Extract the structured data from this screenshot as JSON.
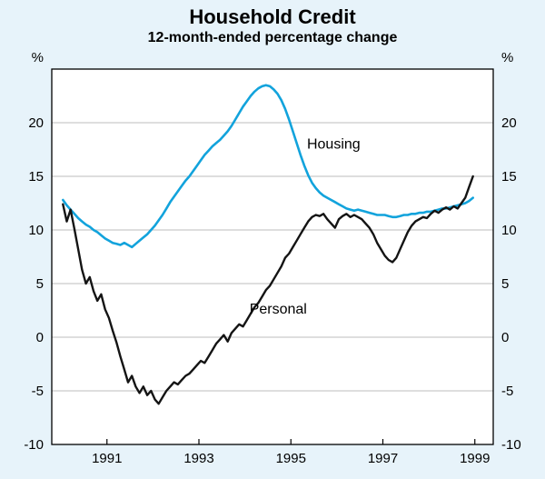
{
  "chart_data": {
    "type": "line",
    "title": "Household Credit",
    "subtitle": "12-month-ended percentage change",
    "y_unit": "%",
    "ylim": [
      -10,
      25
    ],
    "yticks_labeled": [
      -10,
      -5,
      0,
      5,
      10,
      15,
      20
    ],
    "xlim": [
      1989.8,
      1999.4
    ],
    "xticks": [
      1991,
      1993,
      1995,
      1997,
      1999
    ],
    "x_start": 1990.042,
    "x_step": 0.083333,
    "background": "#e7f3fa",
    "plot_background": "#ffffff",
    "grid_color": "#bdbdbd",
    "border_color": "#000000",
    "legend_position": "inline-annotations",
    "grid": true,
    "series": [
      {
        "name": "Housing",
        "color": "#12a3dc",
        "width": 2.6,
        "label_pos": {
          "x": 1995.35,
          "y": 17.6
        },
        "values": [
          12.8,
          12.3,
          11.9,
          11.5,
          11.1,
          10.8,
          10.5,
          10.3,
          10.0,
          9.8,
          9.5,
          9.2,
          9.0,
          8.8,
          8.7,
          8.6,
          8.8,
          8.6,
          8.4,
          8.7,
          9.0,
          9.3,
          9.6,
          10.0,
          10.4,
          10.9,
          11.4,
          12.0,
          12.6,
          13.1,
          13.6,
          14.1,
          14.6,
          15.0,
          15.5,
          16.0,
          16.5,
          17.0,
          17.4,
          17.8,
          18.1,
          18.4,
          18.8,
          19.2,
          19.7,
          20.3,
          20.9,
          21.5,
          22.0,
          22.5,
          22.9,
          23.2,
          23.4,
          23.5,
          23.4,
          23.1,
          22.7,
          22.1,
          21.3,
          20.3,
          19.2,
          18.1,
          17.0,
          16.0,
          15.1,
          14.4,
          13.9,
          13.5,
          13.2,
          13.0,
          12.8,
          12.6,
          12.4,
          12.2,
          12.0,
          11.9,
          11.8,
          11.9,
          11.8,
          11.7,
          11.6,
          11.5,
          11.4,
          11.4,
          11.4,
          11.3,
          11.2,
          11.2,
          11.3,
          11.4,
          11.4,
          11.5,
          11.5,
          11.6,
          11.6,
          11.7,
          11.7,
          11.8,
          11.9,
          12.0,
          12.0,
          12.1,
          12.2,
          12.3,
          12.4,
          12.5,
          12.7,
          13.0
        ]
      },
      {
        "name": "Personal",
        "color": "#141414",
        "width": 2.4,
        "label_pos": {
          "x": 1994.1,
          "y": 2.2
        },
        "values": [
          12.4,
          10.8,
          11.9,
          10.1,
          8.2,
          6.3,
          5.0,
          5.6,
          4.3,
          3.4,
          4.0,
          2.6,
          1.8,
          0.6,
          -0.5,
          -1.8,
          -3.0,
          -4.2,
          -3.6,
          -4.6,
          -5.2,
          -4.6,
          -5.4,
          -5.0,
          -5.8,
          -6.2,
          -5.6,
          -5.0,
          -4.6,
          -4.2,
          -4.4,
          -4.0,
          -3.6,
          -3.4,
          -3.0,
          -2.6,
          -2.2,
          -2.4,
          -1.8,
          -1.2,
          -0.6,
          -0.2,
          0.2,
          -0.4,
          0.4,
          0.8,
          1.2,
          1.0,
          1.6,
          2.2,
          2.8,
          3.2,
          3.8,
          4.4,
          4.8,
          5.4,
          6.0,
          6.6,
          7.4,
          7.8,
          8.4,
          9.0,
          9.6,
          10.2,
          10.8,
          11.2,
          11.4,
          11.3,
          11.5,
          11.0,
          10.6,
          10.2,
          11.0,
          11.3,
          11.5,
          11.2,
          11.4,
          11.2,
          11.0,
          10.6,
          10.2,
          9.6,
          8.8,
          8.2,
          7.6,
          7.2,
          7.0,
          7.4,
          8.2,
          9.0,
          9.8,
          10.4,
          10.8,
          11.0,
          11.2,
          11.1,
          11.5,
          11.8,
          11.6,
          11.9,
          12.1,
          11.9,
          12.2,
          12.0,
          12.5,
          13.0,
          14.0,
          15.0
        ]
      }
    ]
  }
}
